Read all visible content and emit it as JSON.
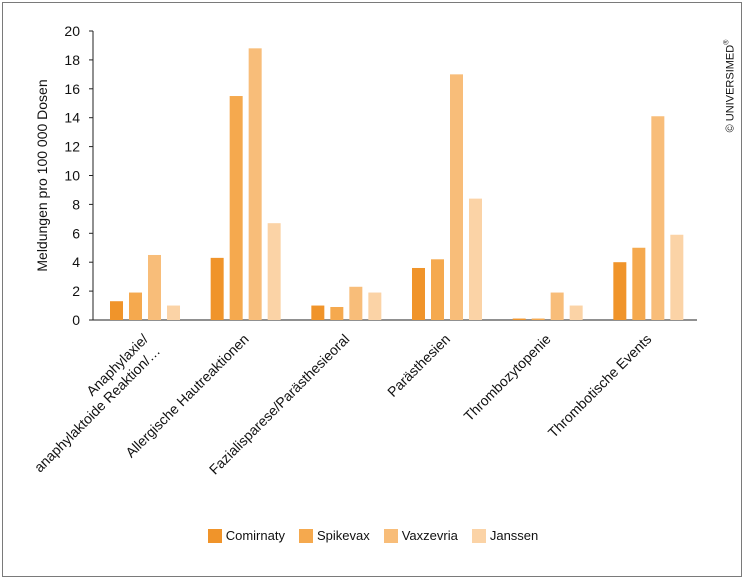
{
  "copyright": {
    "text": "© UNIVERSIMED",
    "mark": "®"
  },
  "chart_data": {
    "type": "bar",
    "ylabel": "Meldungen pro 100 000 Dosen",
    "ylim": [
      0,
      20
    ],
    "yticks": [
      0,
      2,
      4,
      6,
      8,
      10,
      12,
      14,
      16,
      18,
      20
    ],
    "ytick_labels": [
      "0",
      "2",
      "4",
      "6",
      "8",
      "10",
      "12",
      "14",
      "16",
      "18",
      "20"
    ],
    "categories": [
      "Anaphylaxie/ anaphylaktoide Reaktion/…",
      "Allergische Hautreaktionen",
      "Fazialisparese/Parästhesieoral",
      "Parästhesien",
      "Thrombozytopenie",
      "Thrombotische Events"
    ],
    "category_lines": [
      [
        "Anaphylaxie/",
        "anaphylaktoide Reaktion/…"
      ],
      [
        "Allergische Hautreaktionen"
      ],
      [
        "Fazialisparese/Parästhesieoral"
      ],
      [
        "Parästhesien"
      ],
      [
        "Thrombozytopenie"
      ],
      [
        "Thrombotische Events"
      ]
    ],
    "series": [
      {
        "name": "Comirnaty",
        "color": "#f0942a",
        "values": [
          1.3,
          4.3,
          1.0,
          3.6,
          0.1,
          4.0
        ]
      },
      {
        "name": "Spikevax",
        "color": "#f5a94e",
        "values": [
          1.9,
          15.5,
          0.9,
          4.2,
          0.1,
          5.0
        ]
      },
      {
        "name": "Vaxzevria",
        "color": "#f8bd79",
        "values": [
          4.5,
          18.8,
          2.3,
          17.0,
          1.9,
          14.1
        ]
      },
      {
        "name": "Janssen",
        "color": "#fbd3a6",
        "values": [
          1.0,
          6.7,
          1.9,
          8.4,
          1.0,
          5.9
        ]
      }
    ],
    "grid": false,
    "legend_position": "bottom"
  }
}
